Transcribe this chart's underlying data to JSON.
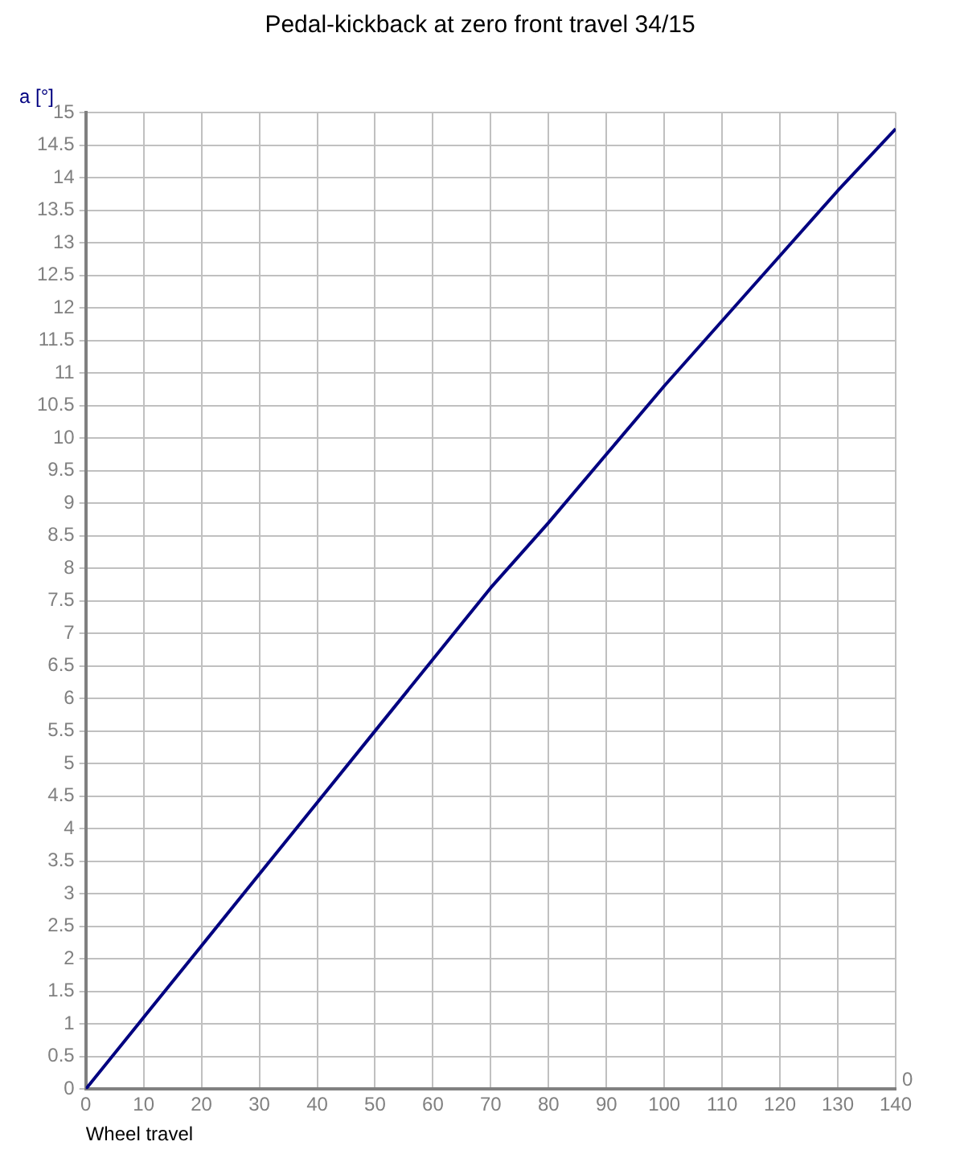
{
  "chart_data": {
    "type": "line",
    "title": "Pedal-kickback at zero front travel 34/15",
    "xlabel": "Wheel travel",
    "ylabel": "a [°]",
    "x": [
      0,
      10,
      20,
      30,
      40,
      50,
      60,
      70,
      80,
      90,
      100,
      110,
      120,
      130,
      140
    ],
    "series": [
      {
        "color": "#000080",
        "values": [
          0,
          1.1,
          2.2,
          3.3,
          4.4,
          5.5,
          6.6,
          7.7,
          8.7,
          9.75,
          10.8,
          11.8,
          12.8,
          13.8,
          14.75
        ]
      }
    ],
    "xlim": [
      0,
      140
    ],
    "xticks": [
      0,
      10,
      20,
      30,
      40,
      50,
      60,
      70,
      80,
      90,
      100,
      110,
      120,
      130,
      140
    ],
    "ylim": [
      0,
      15
    ],
    "yticks": [
      0,
      0.5,
      1,
      1.5,
      2,
      2.5,
      3,
      3.5,
      4,
      4.5,
      5,
      5.5,
      6,
      6.5,
      7,
      7.5,
      8,
      8.5,
      9,
      9.5,
      10,
      10.5,
      11,
      11.5,
      12,
      12.5,
      13,
      13.5,
      14,
      14.5,
      15
    ],
    "annotations": [
      "0"
    ],
    "grid": true,
    "legend": false,
    "marker": "none",
    "line_style": "solid"
  }
}
